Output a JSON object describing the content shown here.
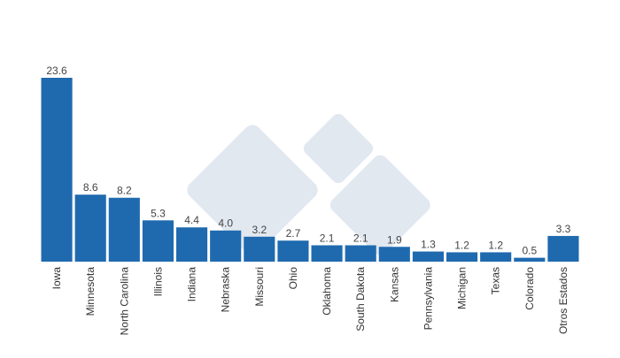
{
  "chart_data": {
    "type": "bar",
    "categories": [
      "Iowa",
      "Minnesota",
      "North Carolina",
      "Illinois",
      "Indiana",
      "Nebraska",
      "Missouri",
      "Ohio",
      "Oklahoma",
      "South Dakota",
      "Kansas",
      "Pennsylvania",
      "Michigan",
      "Texas",
      "Colorado",
      "Otros Estados"
    ],
    "values": [
      23.6,
      8.6,
      8.2,
      5.3,
      4.4,
      4.0,
      3.2,
      2.7,
      2.1,
      2.1,
      1.9,
      1.3,
      1.2,
      1.2,
      0.5,
      3.3
    ],
    "value_labels": [
      "23.6",
      "8.6",
      "8.2",
      "5.3",
      "4.4",
      "4.0",
      "3.2",
      "2.7",
      "2.1",
      "2.1",
      "1.9",
      "1.3",
      "1.2",
      "1.2",
      "0.5",
      "3.3"
    ],
    "color": "#1f6aaf"
  }
}
